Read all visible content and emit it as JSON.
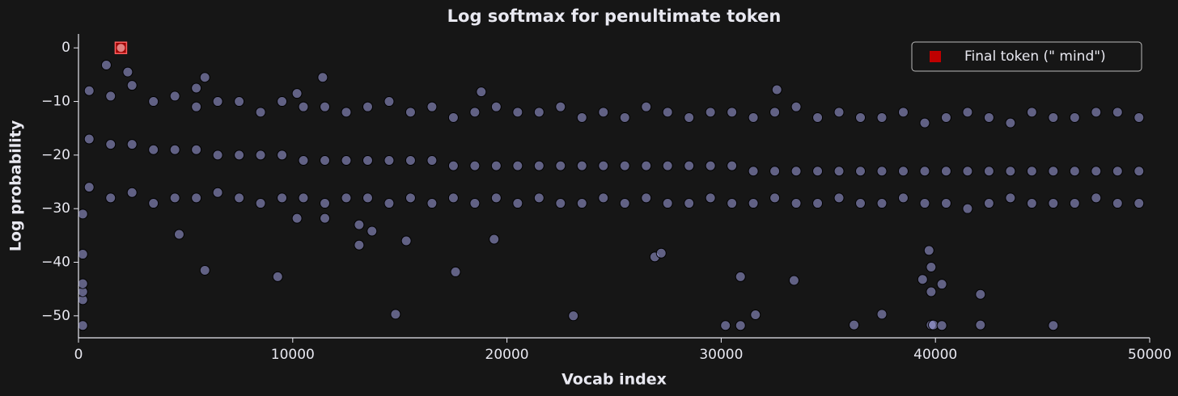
{
  "chart_data": {
    "type": "scatter",
    "title": "Log softmax for penultimate token",
    "x_label": "Vocab index",
    "y_label": "Log probability",
    "xlim": [
      0,
      50000
    ],
    "ylim": [
      -54.1,
      2.6
    ],
    "xticks": [
      0,
      10000,
      20000,
      30000,
      40000,
      50000
    ],
    "yticks": [
      {
        "value": 0,
        "label": "0"
      },
      {
        "value": -10,
        "label": "−10"
      },
      {
        "value": -20,
        "label": "−20"
      },
      {
        "value": -30,
        "label": "−30"
      },
      {
        "value": -40,
        "label": "−40"
      },
      {
        "value": -50,
        "label": "−50"
      }
    ],
    "legend": "upper right",
    "series": [
      {
        "color": "#a0a0e0",
        "marker": "circle",
        "x": [
          500,
          1500,
          2500,
          3500,
          4500,
          5500,
          6500,
          7500,
          8500,
          9500,
          10500,
          11500,
          12500,
          13500,
          14500,
          15500,
          16500,
          17500,
          18500,
          19500,
          20500,
          21500,
          22500,
          23500,
          24500,
          25500,
          26500,
          27500,
          28500,
          29500,
          30500,
          31500,
          32500,
          33500,
          34500,
          35500,
          36500,
          37500,
          38500,
          39500,
          40500,
          41500,
          42500,
          43500,
          44500,
          45500,
          46500,
          47500,
          48500,
          49500
        ],
        "values": [
          -8,
          -9,
          -7,
          -10,
          -9,
          -11,
          -10,
          -10,
          -12,
          -10,
          -11,
          -11,
          -12,
          -11,
          -10,
          -12,
          -11,
          -13,
          -12,
          -11,
          -12,
          -12,
          -11,
          -13,
          -12,
          -13,
          -11,
          -12,
          -13,
          -12,
          -12,
          -13,
          -12,
          -11,
          -13,
          -12,
          -13,
          -13,
          -12,
          -14,
          -13,
          -12,
          -13,
          -14,
          -12,
          -13,
          -13,
          -12,
          -12,
          -13
        ]
      },
      {
        "color": "#a0a0e0",
        "marker": "circle",
        "x": [
          500,
          1500,
          2500,
          3500,
          4500,
          5500,
          6500,
          7500,
          8500,
          9500,
          10500,
          11500,
          12500,
          13500,
          14500,
          15500,
          16500,
          17500,
          18500,
          19500,
          20500,
          21500,
          22500,
          23500,
          24500,
          25500,
          26500,
          27500,
          28500,
          29500,
          30500,
          31500,
          32500,
          33500,
          34500,
          35500,
          36500,
          37500,
          38500,
          39500,
          40500,
          41500,
          42500,
          43500,
          44500,
          45500,
          46500,
          47500,
          48500,
          49500
        ],
        "values": [
          -17,
          -18,
          -18,
          -19,
          -19,
          -19,
          -20,
          -20,
          -20,
          -20,
          -21,
          -21,
          -21,
          -21,
          -21,
          -21,
          -21,
          -22,
          -22,
          -22,
          -22,
          -22,
          -22,
          -22,
          -22,
          -22,
          -22,
          -22,
          -22,
          -22,
          -22,
          -23,
          -23,
          -23,
          -23,
          -23,
          -23,
          -23,
          -23,
          -23,
          -23,
          -23,
          -23,
          -23,
          -23,
          -23,
          -23,
          -23,
          -23,
          -23
        ]
      },
      {
        "color": "#a0a0e0",
        "marker": "circle",
        "x": [
          500,
          1500,
          2500,
          3500,
          4500,
          5500,
          6500,
          7500,
          8500,
          9500,
          10500,
          11500,
          12500,
          13500,
          14500,
          15500,
          16500,
          17500,
          18500,
          19500,
          20500,
          21500,
          22500,
          23500,
          24500,
          25500,
          26500,
          27500,
          28500,
          29500,
          30500,
          31500,
          32500,
          33500,
          34500,
          35500,
          36500,
          37500,
          38500,
          39500,
          40500,
          41500,
          42500,
          43500,
          44500,
          45500,
          46500,
          47500,
          48500,
          49500
        ],
        "values": [
          -26,
          -28,
          -27,
          -29,
          -28,
          -28,
          -27,
          -28,
          -29,
          -28,
          -28,
          -29,
          -28,
          -28,
          -29,
          -28,
          -29,
          -28,
          -29,
          -28,
          -29,
          -28,
          -29,
          -29,
          -28,
          -29,
          -28,
          -29,
          -29,
          -28,
          -29,
          -29,
          -28,
          -29,
          -29,
          -28,
          -29,
          -29,
          -28,
          -29,
          -29,
          -30,
          -29,
          -28,
          -29,
          -29,
          -29,
          -28,
          -29,
          -29
        ]
      },
      {
        "color": "#a0a0e0",
        "marker": "circle",
        "x": [
          200,
          200,
          200,
          200,
          200,
          200,
          1300,
          2300,
          5500,
          5900,
          10200,
          11400,
          18800,
          32600,
          4700,
          5900,
          9300,
          10200,
          11500,
          13100,
          13100,
          13700,
          14800,
          15300,
          17600,
          19400,
          23100,
          26900,
          27200,
          30200,
          30900,
          30900,
          31600,
          33400,
          36200,
          37500,
          39400,
          39700,
          39800,
          39800,
          39800,
          39900,
          40300,
          40300,
          42100,
          42100,
          45500
        ],
        "values": [
          -51.8,
          -47,
          -45.5,
          -44,
          -38.5,
          -31,
          -3.2,
          -4.5,
          -7.5,
          -5.5,
          -8.5,
          -5.5,
          -8.2,
          -7.8,
          -34.8,
          -41.5,
          -42.7,
          -31.8,
          -31.8,
          -36.8,
          -33,
          -34.2,
          -49.7,
          -36,
          -41.8,
          -35.7,
          -50,
          -39,
          -38.3,
          -51.8,
          -51.8,
          -42.7,
          -49.8,
          -43.4,
          -51.7,
          -49.7,
          -43.2,
          -37.8,
          -40.9,
          -45.5,
          -51.7,
          -51.7,
          -44.1,
          -51.8,
          -46,
          -51.7,
          -51.8
        ]
      },
      {
        "name": "Final token (\" mind\")",
        "color": "#c00000",
        "marker": "square",
        "x": [
          1980
        ],
        "values": [
          0
        ]
      }
    ]
  }
}
